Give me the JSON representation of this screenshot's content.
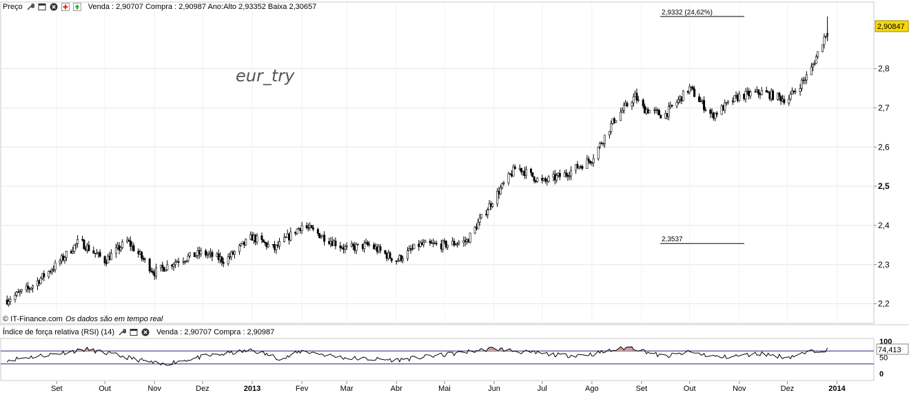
{
  "toolbar": {
    "label": "Preço",
    "info": "Venda : 2,90707 Compra : 2,90987 Ano:Alto 2,93352 Baixa 2,30657"
  },
  "rsi_panel": {
    "label": "Índice de força relativa (RSI) (14)",
    "info": "Venda : 2,90707 Compra : 2,90987",
    "current_value": "74,413"
  },
  "credit": {
    "source": "© IT-Finance.com",
    "realtime": "Os dados são em tempo real"
  },
  "icons": [
    "wrench-icon",
    "window-icon",
    "close-icon",
    "add-icon",
    "export-icon"
  ],
  "colors": {
    "candle_up": "#ffffff",
    "candle_down": "#000000",
    "rsi_line": "#000000",
    "rsi_levels": "#1a237e",
    "rsi_fill": "#c9a19f",
    "grid": "#e6e6e6",
    "price_tag_bg": "#f5d90a"
  },
  "chart_data": [
    {
      "type": "candlestick",
      "title": "eur_try",
      "x_tick_labels": [
        "Set",
        "Out",
        "Nov",
        "Dez",
        "2013",
        "Fev",
        "Mar",
        "Abr",
        "Mai",
        "Jun",
        "Jul",
        "Ago",
        "Set",
        "Out",
        "Nov",
        "Dez",
        "2014"
      ],
      "y_ticks": [
        2.2,
        2.3,
        2.4,
        2.5,
        2.6,
        2.7,
        2.8
      ],
      "y_tick_labels": [
        "2,2",
        "2,3",
        "2,4",
        "2,5",
        "2,6",
        "2,7",
        "2,8"
      ],
      "ylim": [
        2.15,
        2.97
      ],
      "last_price": 2.90847,
      "last_price_label": "2,90847",
      "annotations": [
        {
          "value": 2.9332,
          "label": "2,9332 (24,62%)"
        },
        {
          "value": 2.3537,
          "label": "2,3537"
        }
      ],
      "series": [
        {
          "x": [
            "2012-08-01",
            "2012-08-15",
            "2012-09-01",
            "2012-09-15",
            "2012-10-01",
            "2012-10-15",
            "2012-11-01",
            "2012-11-15",
            "2012-12-01",
            "2012-12-15",
            "2013-01-01",
            "2013-01-15",
            "2013-02-01",
            "2013-02-15",
            "2013-03-01",
            "2013-03-15",
            "2013-04-01",
            "2013-04-15",
            "2013-05-01",
            "2013-05-15",
            "2013-06-01",
            "2013-06-15",
            "2013-07-01",
            "2013-07-15",
            "2013-08-01",
            "2013-08-15",
            "2013-08-28",
            "2013-09-01",
            "2013-09-15",
            "2013-10-01",
            "2013-10-15",
            "2013-11-01",
            "2013-11-15",
            "2013-12-01",
            "2013-12-15",
            "2013-12-26"
          ],
          "y": [
            2.21,
            2.24,
            2.3,
            2.36,
            2.31,
            2.36,
            2.28,
            2.31,
            2.33,
            2.31,
            2.37,
            2.34,
            2.4,
            2.37,
            2.34,
            2.35,
            2.31,
            2.35,
            2.35,
            2.36,
            2.47,
            2.55,
            2.51,
            2.53,
            2.57,
            2.67,
            2.73,
            2.7,
            2.68,
            2.75,
            2.68,
            2.73,
            2.74,
            2.72,
            2.79,
            2.9
          ]
        }
      ]
    },
    {
      "type": "line",
      "title": "",
      "ylim": [
        0,
        100
      ],
      "y_tick_labels": [
        "100",
        "50",
        "0"
      ],
      "levels": [
        70,
        30
      ],
      "series": [
        {
          "x": [
            "2012-08-01",
            "2012-09-01",
            "2012-09-20",
            "2012-10-10",
            "2012-11-05",
            "2012-12-01",
            "2013-01-01",
            "2013-01-20",
            "2013-02-01",
            "2013-03-01",
            "2013-04-01",
            "2013-05-01",
            "2013-06-01",
            "2013-06-20",
            "2013-07-15",
            "2013-08-01",
            "2013-08-25",
            "2013-09-15",
            "2013-10-01",
            "2013-10-20",
            "2013-11-15",
            "2013-12-01",
            "2013-12-20",
            "2013-12-26"
          ],
          "y": [
            42,
            62,
            75,
            55,
            28,
            52,
            72,
            45,
            70,
            48,
            42,
            58,
            78,
            66,
            56,
            60,
            82,
            52,
            66,
            50,
            62,
            50,
            72,
            74
          ]
        }
      ]
    }
  ]
}
